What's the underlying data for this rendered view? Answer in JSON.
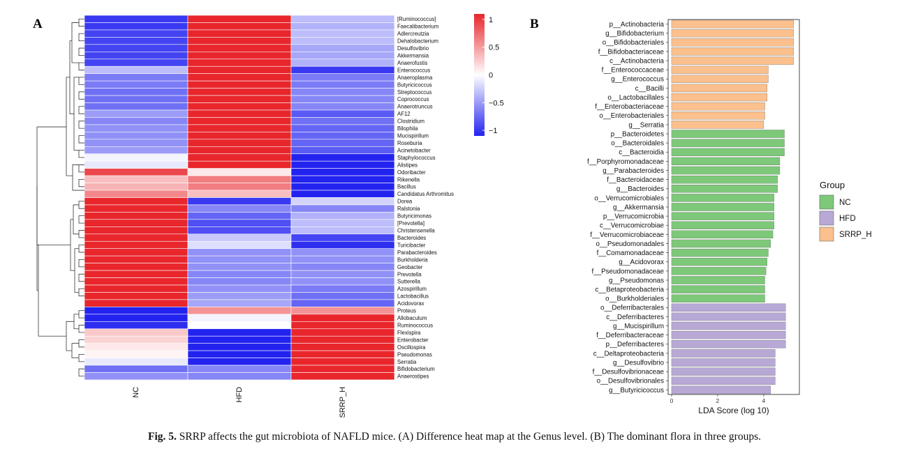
{
  "panel_a_label": "A",
  "panel_b_label": "B",
  "caption": {
    "label": "Fig. 5.",
    "text": "SRRP affects the gut microbiota of NAFLD mice. (A) Difference heat map at the Genus level. (B) The dominant flora in three groups."
  },
  "chart_data": [
    {
      "type": "heatmap",
      "title": "",
      "columns": [
        "NC",
        "HFD",
        "SRRP_H"
      ],
      "rows": [
        "[Ruminococcus]",
        "Faecalibacterium",
        "Adlercreutzia",
        "Dehalobacterium",
        "Desulfovibrio",
        "Akkermansia",
        "Anaerofustis",
        "Enterococcus",
        "Anaeroplasma",
        "Butyricicoccus",
        "Streptococcus",
        "Coprococcus",
        "Anaerotruncus",
        "AF12",
        "Clostridium",
        "Bilophila",
        "Mucispirillum",
        "Roseburia",
        "Acinetobacter",
        "Staphylococcus",
        "Alistipes",
        "Odoribacter",
        "Rikenella",
        "Bacillus",
        "Candidatus Arthromitus",
        "Dorea",
        "Ralstonia",
        "Butyricimonas",
        "[Prevotella]",
        "Christensenella",
        "Bacteroides",
        "Turicibacter",
        "Parabacteroides",
        "Burkholderia",
        "Geobacter",
        "Prevotella",
        "Sutterella",
        "Azospirillum",
        "Lactobacillus",
        "Acidovorax",
        "Proteus",
        "Allobaculum",
        "Ruminococcus",
        "Flexispira",
        "Enterobacter",
        "Oscillospira",
        "Pseudomonas",
        "Serratia",
        "Bifidobacterium",
        "Anaerostipes"
      ],
      "values": [
        [
          -0.9,
          1.1,
          -0.3
        ],
        [
          -0.9,
          1.1,
          -0.35
        ],
        [
          -0.85,
          1.1,
          -0.3
        ],
        [
          -0.85,
          1.1,
          -0.3
        ],
        [
          -0.85,
          1.1,
          -0.4
        ],
        [
          -0.85,
          1.1,
          -0.4
        ],
        [
          -0.85,
          1.1,
          -0.35
        ],
        [
          -0.3,
          1.1,
          -0.9
        ],
        [
          -0.6,
          1.1,
          -0.6
        ],
        [
          -0.6,
          1.1,
          -0.6
        ],
        [
          -0.65,
          1.1,
          -0.55
        ],
        [
          -0.65,
          1.1,
          -0.55
        ],
        [
          -0.65,
          1.1,
          -0.55
        ],
        [
          -0.45,
          1.1,
          -0.75
        ],
        [
          -0.55,
          1.1,
          -0.65
        ],
        [
          -0.5,
          1.1,
          -0.7
        ],
        [
          -0.5,
          1.1,
          -0.7
        ],
        [
          -0.5,
          1.1,
          -0.7
        ],
        [
          -0.45,
          1.1,
          -0.75
        ],
        [
          -0.05,
          1.1,
          -1.0
        ],
        [
          -0.1,
          1.0,
          -1.0
        ],
        [
          0.85,
          0.1,
          -1.0
        ],
        [
          0.3,
          0.6,
          -1.0
        ],
        [
          0.35,
          0.6,
          -1.0
        ],
        [
          0.55,
          0.3,
          -1.0
        ],
        [
          1.1,
          -0.9,
          -0.2
        ],
        [
          1.1,
          -0.55,
          -0.55
        ],
        [
          1.1,
          -0.7,
          -0.35
        ],
        [
          1.1,
          -0.8,
          -0.3
        ],
        [
          1.1,
          -0.8,
          -0.3
        ],
        [
          1.1,
          -0.25,
          -0.85
        ],
        [
          1.1,
          -0.15,
          -0.95
        ],
        [
          1.1,
          -0.5,
          -0.5
        ],
        [
          1.1,
          -0.5,
          -0.5
        ],
        [
          1.1,
          -0.5,
          -0.55
        ],
        [
          1.1,
          -0.55,
          -0.5
        ],
        [
          1.1,
          -0.55,
          -0.5
        ],
        [
          1.1,
          -0.5,
          -0.6
        ],
        [
          1.1,
          -0.45,
          -0.65
        ],
        [
          1.1,
          -0.4,
          -0.7
        ],
        [
          -1.0,
          0.5,
          0.5
        ],
        [
          -1.0,
          -0.05,
          1.05
        ],
        [
          -0.95,
          0.0,
          1.05
        ],
        [
          0.25,
          -1.0,
          1.0
        ],
        [
          0.2,
          -1.0,
          1.05
        ],
        [
          0.1,
          -1.0,
          1.05
        ],
        [
          0.05,
          -1.0,
          1.05
        ],
        [
          -0.1,
          -1.0,
          1.1
        ],
        [
          -0.65,
          -0.55,
          1.1
        ],
        [
          -0.5,
          -0.55,
          1.1
        ]
      ],
      "colorbar": {
        "ticks": [
          1,
          0.5,
          0,
          -0.5,
          -1
        ],
        "tick_labels": [
          "1",
          "0.5",
          "0",
          "−0.5",
          "−1"
        ],
        "range": [
          -1.1,
          1.1
        ]
      },
      "row_dendrogram": true,
      "colors": {
        "high": "#e8262c",
        "mid": "#ffffff",
        "low": "#2323f0"
      }
    },
    {
      "type": "bar",
      "orientation": "horizontal",
      "categories": [
        "p__Actinobacteria",
        "g__Bifidobacterium",
        "o__Bifidobacteriales",
        "f__Bifidobacteriaceae",
        "c__Actinobacteria",
        "f__Enterococcaceae",
        "g__Enterococcus",
        "c__Bacilli",
        "o__Lactobacillales",
        "f__Enterobacteriaceae",
        "o__Enterobacteriales",
        "g__Serratia",
        "p__Bacteroidetes",
        "o__Bacteroidales",
        "c__Bacteroidia",
        "f__Porphyromonadaceae",
        "g__Parabacteroides",
        "f__Bacteroidaceae",
        "g__Bacteroides",
        "o__Verrucomicrobiales",
        "g__Akkermansia",
        "p__Verrucomicrobia",
        "c__Verrucomicrobiae",
        "f__Verrucomicrobiaceae",
        "o__Pseudomonadales",
        "f__Comamonadaceae",
        "g__Acidovorax",
        "f__Pseudomonadaceae",
        "g__Pseudomonas",
        "c__Betaproteobacteria",
        "o__Burkholderiales",
        "o__Deferribacterales",
        "c__Deferribacteres",
        "g__Mucispirillum",
        "f__Deferribacteraceae",
        "p__Deferribacteres",
        "c__Deltaproteobacteria",
        "g__Desulfovibrio",
        "f__Desulfovibrionaceae",
        "o__Desulfovibrionales",
        "g__Butyricicoccus"
      ],
      "values": [
        5.3,
        5.3,
        5.3,
        5.3,
        5.3,
        4.2,
        4.2,
        4.15,
        4.15,
        4.05,
        4.05,
        4.0,
        4.9,
        4.9,
        4.9,
        4.7,
        4.7,
        4.6,
        4.6,
        4.45,
        4.45,
        4.45,
        4.45,
        4.4,
        4.3,
        4.2,
        4.15,
        4.1,
        4.05,
        4.05,
        4.05,
        4.95,
        4.95,
        4.95,
        4.95,
        4.95,
        4.5,
        4.5,
        4.5,
        4.5,
        4.3
      ],
      "groups": [
        "SRRP_H",
        "SRRP_H",
        "SRRP_H",
        "SRRP_H",
        "SRRP_H",
        "SRRP_H",
        "SRRP_H",
        "SRRP_H",
        "SRRP_H",
        "SRRP_H",
        "SRRP_H",
        "SRRP_H",
        "NC",
        "NC",
        "NC",
        "NC",
        "NC",
        "NC",
        "NC",
        "NC",
        "NC",
        "NC",
        "NC",
        "NC",
        "NC",
        "NC",
        "NC",
        "NC",
        "NC",
        "NC",
        "NC",
        "HFD",
        "HFD",
        "HFD",
        "HFD",
        "HFD",
        "HFD",
        "HFD",
        "HFD",
        "HFD",
        "HFD"
      ],
      "xlabel": "LDA Score (log 10)",
      "xticks": [
        0,
        2,
        4
      ],
      "xlim": [
        -0.15,
        5.55
      ],
      "legend": {
        "title": "Group",
        "placement": "right",
        "entries": [
          {
            "name": "NC",
            "color": "#7dc879"
          },
          {
            "name": "HFD",
            "color": "#b8a8d6"
          },
          {
            "name": "SRRP_H",
            "color": "#fbc08d"
          }
        ]
      }
    }
  ]
}
